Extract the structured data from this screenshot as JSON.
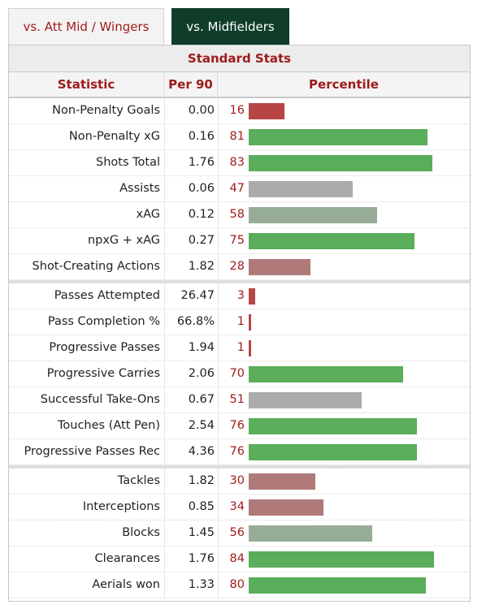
{
  "tabs": [
    {
      "label": "vs. Att Mid / Wingers",
      "active": false
    },
    {
      "label": "vs. Midfielders",
      "active": true
    }
  ],
  "table": {
    "caption": "Standard Stats",
    "headers": {
      "statistic": "Statistic",
      "per90": "Per 90",
      "percentile": "Percentile"
    }
  },
  "colors": {
    "very_low": "#b84545",
    "low": "#b07a7a",
    "mid_low": "#ababab",
    "mid_high": "#98ad98",
    "high": "#5aad5a",
    "accent": "#9e1b1b",
    "tab_active_bg": "#0f3d2a"
  },
  "chart_data": {
    "type": "bar",
    "title": "Standard Stats",
    "orientation": "horizontal",
    "xlim": [
      0,
      100
    ],
    "groups": [
      {
        "rows": [
          {
            "stat": "Non-Penalty Goals",
            "per90": "0.00",
            "percentile": 16
          },
          {
            "stat": "Non-Penalty xG",
            "per90": "0.16",
            "percentile": 81
          },
          {
            "stat": "Shots Total",
            "per90": "1.76",
            "percentile": 83
          },
          {
            "stat": "Assists",
            "per90": "0.06",
            "percentile": 47
          },
          {
            "stat": "xAG",
            "per90": "0.12",
            "percentile": 58
          },
          {
            "stat": "npxG + xAG",
            "per90": "0.27",
            "percentile": 75
          },
          {
            "stat": "Shot-Creating Actions",
            "per90": "1.82",
            "percentile": 28
          }
        ]
      },
      {
        "rows": [
          {
            "stat": "Passes Attempted",
            "per90": "26.47",
            "percentile": 3
          },
          {
            "stat": "Pass Completion %",
            "per90": "66.8%",
            "percentile": 1
          },
          {
            "stat": "Progressive Passes",
            "per90": "1.94",
            "percentile": 1
          },
          {
            "stat": "Progressive Carries",
            "per90": "2.06",
            "percentile": 70
          },
          {
            "stat": "Successful Take-Ons",
            "per90": "0.67",
            "percentile": 51
          },
          {
            "stat": "Touches (Att Pen)",
            "per90": "2.54",
            "percentile": 76
          },
          {
            "stat": "Progressive Passes Rec",
            "per90": "4.36",
            "percentile": 76
          }
        ]
      },
      {
        "rows": [
          {
            "stat": "Tackles",
            "per90": "1.82",
            "percentile": 30
          },
          {
            "stat": "Interceptions",
            "per90": "0.85",
            "percentile": 34
          },
          {
            "stat": "Blocks",
            "per90": "1.45",
            "percentile": 56
          },
          {
            "stat": "Clearances",
            "per90": "1.76",
            "percentile": 84
          },
          {
            "stat": "Aerials won",
            "per90": "1.33",
            "percentile": 80
          }
        ]
      }
    ]
  }
}
